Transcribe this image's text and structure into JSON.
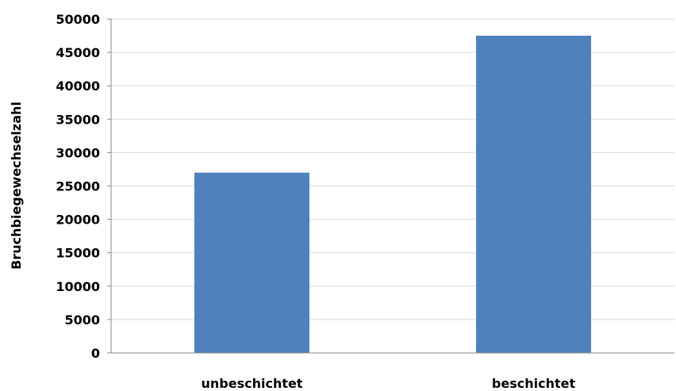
{
  "chart_data": {
    "type": "bar",
    "title": "",
    "xlabel": "",
    "ylabel": "Bruchbiegewechselzahl",
    "categories": [
      "unbeschichtet",
      "beschichtet"
    ],
    "values": [
      27000,
      47500
    ],
    "ylim": [
      0,
      50000
    ],
    "yticks": [
      0,
      5000,
      10000,
      15000,
      20000,
      25000,
      30000,
      35000,
      40000,
      45000,
      50000
    ],
    "grid": true,
    "legend": "none",
    "colors": {
      "bar": "#4f81bd",
      "grid": "#d9d9d9",
      "axis": "#888888",
      "text": "#000000"
    }
  }
}
